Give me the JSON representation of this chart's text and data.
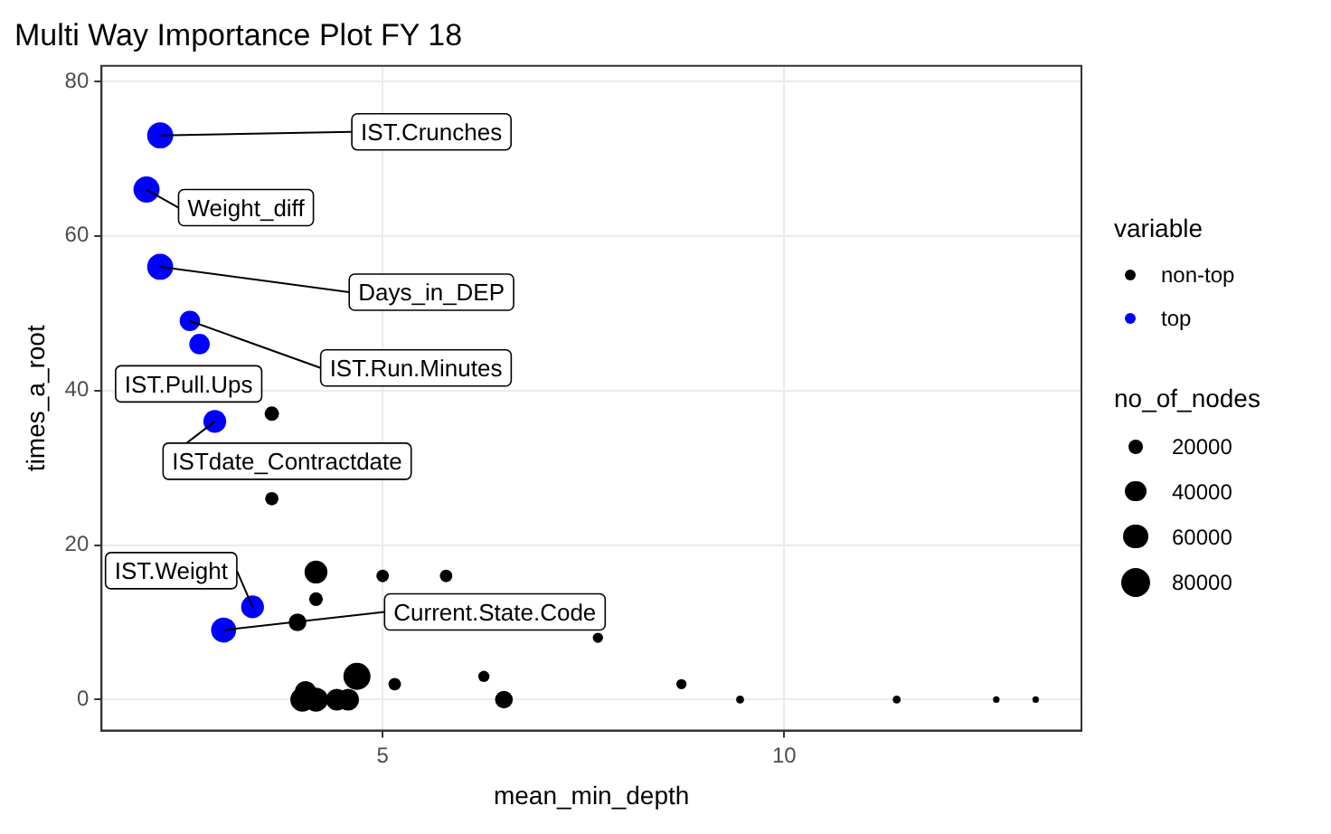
{
  "chart_data": {
    "type": "bubble",
    "title": "Multi Way Importance Plot FY 18",
    "xlabel": "mean_min_depth",
    "ylabel": "times_a_root",
    "legend_title": "variable",
    "legend": "right",
    "grid": true,
    "xlim": [
      1.5,
      13.7
    ],
    "xticks": [
      5,
      10
    ],
    "ylim": [
      -4,
      82
    ],
    "yticks": [
      0,
      20,
      40,
      60,
      80
    ],
    "size_legend": [
      20000,
      40000,
      60000,
      80000
    ],
    "series": [
      {
        "name": "non-top",
        "color": "#000000",
        "x": [
          3.62,
          3.62,
          4.17,
          4.17,
          5.0,
          5.79,
          3.94,
          7.68,
          4.68,
          5.15,
          6.26,
          8.72,
          4.0,
          4.17,
          4.43,
          4.57,
          6.51,
          9.45,
          11.4,
          12.64,
          13.13,
          4.04
        ],
        "values": [
          37,
          26,
          16.5,
          13,
          16,
          16,
          10,
          8,
          3,
          2,
          3,
          2,
          0,
          0,
          0,
          0,
          0,
          0,
          0,
          0,
          0,
          1
        ],
        "sizes": [
          20000,
          17000,
          50000,
          18000,
          15000,
          15000,
          30000,
          10000,
          70000,
          15000,
          12000,
          10000,
          55000,
          55000,
          45000,
          45000,
          30000,
          6000,
          6000,
          4000,
          4000,
          45000
        ]
      },
      {
        "name": "top",
        "color": "#0000ff",
        "x": [
          2.23,
          2.06,
          2.23,
          2.6,
          2.72,
          2.91,
          3.38,
          3.02
        ],
        "values": [
          73,
          66,
          56,
          49,
          46,
          36,
          12,
          9
        ],
        "sizes": [
          65000,
          65000,
          65000,
          40000,
          40000,
          50000,
          50000,
          60000
        ]
      }
    ],
    "annotations": [
      "no_of_nodes",
      {
        "text": "IST.Crunches",
        "x": 2.23,
        "y": 73
      },
      {
        "text": "Weight_diff",
        "x": 2.06,
        "y": 66
      },
      {
        "text": "Days_in_DEP",
        "x": 2.23,
        "y": 56
      },
      {
        "text": "IST.Run.Minutes",
        "x": 2.6,
        "y": 49
      },
      {
        "text": "IST.Pull.Ups",
        "x": 2.72,
        "y": 46
      },
      {
        "text": "ISTdate_Contractdate",
        "x": 2.91,
        "y": 36
      },
      {
        "text": "IST.Weight",
        "x": 3.38,
        "y": 12
      },
      {
        "text": "Current.State.Code",
        "x": 3.02,
        "y": 9
      }
    ]
  }
}
